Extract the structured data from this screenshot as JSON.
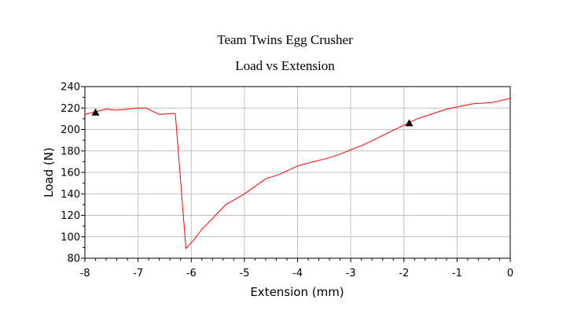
{
  "chart_data": {
    "type": "line",
    "title": "Team Twins Egg Crusher",
    "subtitle": "Load vs Extension",
    "xlabel": "Extension (mm)",
    "ylabel": "Load (N)",
    "xlim": [
      -8,
      0
    ],
    "ylim": [
      80,
      240
    ],
    "xticks": [
      -8,
      -7,
      -6,
      -5,
      -4,
      -3,
      -2,
      -1,
      0
    ],
    "yticks": [
      80,
      100,
      120,
      140,
      160,
      180,
      200,
      220,
      240
    ],
    "grid": true,
    "series": [
      {
        "color": "#ff0000",
        "x": [
          -8.0,
          -7.85,
          -7.6,
          -7.4,
          -7.2,
          -7.0,
          -6.85,
          -6.6,
          -6.35,
          -6.3,
          -6.1,
          -5.95,
          -5.8,
          -5.6,
          -5.35,
          -5.0,
          -4.6,
          -4.35,
          -4.0,
          -3.7,
          -3.45,
          -3.2,
          -2.95,
          -2.75,
          -2.5,
          -2.25,
          -2.0,
          -1.75,
          -1.5,
          -1.2,
          -1.0,
          -0.7,
          -0.35,
          0.0
        ],
        "y": [
          214,
          216,
          219,
          218,
          219,
          220,
          220,
          214,
          215,
          215,
          89,
          97,
          107,
          117,
          130,
          140,
          154,
          158,
          166,
          170,
          173,
          177,
          182,
          186,
          192,
          198,
          204,
          210,
          214,
          219,
          221,
          224,
          225,
          229
        ]
      }
    ],
    "markers": [
      {
        "shape": "triangle",
        "color": "#000000",
        "x": -7.8,
        "y": 216
      },
      {
        "shape": "triangle",
        "color": "#000000",
        "x": -1.9,
        "y": 206
      }
    ]
  }
}
